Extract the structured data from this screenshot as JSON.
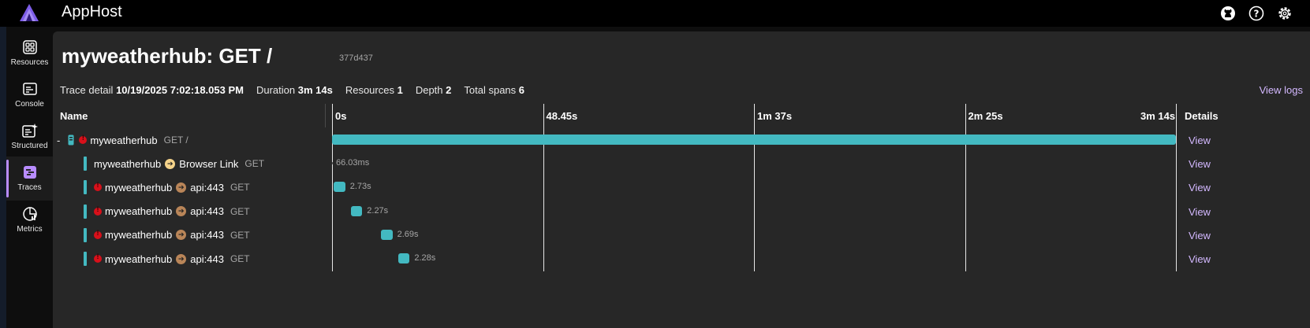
{
  "app": {
    "title": "AppHost"
  },
  "nav": [
    {
      "id": "resources",
      "label": "Resources",
      "icon": "resources-icon",
      "active": false
    },
    {
      "id": "console",
      "label": "Console",
      "icon": "console-icon",
      "active": false
    },
    {
      "id": "structured",
      "label": "Structured",
      "icon": "structured-icon",
      "active": false
    },
    {
      "id": "traces",
      "label": "Traces",
      "icon": "traces-icon",
      "active": true
    },
    {
      "id": "metrics",
      "label": "Metrics",
      "icon": "metrics-icon",
      "active": false
    }
  ],
  "page": {
    "title": "myweatherhub: GET /",
    "trace_id": "377d437",
    "meta": {
      "trace_detail_label": "Trace detail",
      "trace_detail_value": "10/19/2025 7:02:18.053 PM",
      "duration_label": "Duration",
      "duration_value": "3m 14s",
      "resources_label": "Resources",
      "resources_value": "1",
      "depth_label": "Depth",
      "depth_value": "2",
      "total_spans_label": "Total spans",
      "total_spans_value": "6"
    },
    "view_logs": "View logs"
  },
  "table": {
    "name_header": "Name",
    "details_header": "Details",
    "ticks": [
      "0s",
      "48.45s",
      "1m 37s",
      "2m 25s",
      "3m 14s"
    ],
    "total_seconds": 194,
    "view_label": "View",
    "rows": [
      {
        "collapse": "-",
        "resource": "myweatherhub",
        "target": "",
        "method": "GET /",
        "error": true,
        "kind": "root",
        "start": 0,
        "duration": 194,
        "duration_label": ""
      },
      {
        "collapse": "",
        "resource": "myweatherhub",
        "target": "Browser Link",
        "method": "GET",
        "error": false,
        "kind": "yellow",
        "start": 0,
        "duration": 0.066,
        "duration_label": "66.03ms"
      },
      {
        "collapse": "",
        "resource": "myweatherhub",
        "target": "api:443",
        "method": "GET",
        "error": true,
        "kind": "brown",
        "start": 0.3,
        "duration": 2.73,
        "duration_label": "2.73s"
      },
      {
        "collapse": "",
        "resource": "myweatherhub",
        "target": "api:443",
        "method": "GET",
        "error": true,
        "kind": "brown",
        "start": 4.4,
        "duration": 2.27,
        "duration_label": "2.27s"
      },
      {
        "collapse": "",
        "resource": "myweatherhub",
        "target": "api:443",
        "method": "GET",
        "error": true,
        "kind": "brown",
        "start": 11.2,
        "duration": 2.69,
        "duration_label": "2.69s"
      },
      {
        "collapse": "",
        "resource": "myweatherhub",
        "target": "api:443",
        "method": "GET",
        "error": true,
        "kind": "brown",
        "start": 15.3,
        "duration": 2.28,
        "duration_label": "2.28s"
      }
    ]
  },
  "colors": {
    "accent": "#b88cff",
    "span": "#43b9c1",
    "error": "#d8101a",
    "link": "#d3b8ff"
  }
}
